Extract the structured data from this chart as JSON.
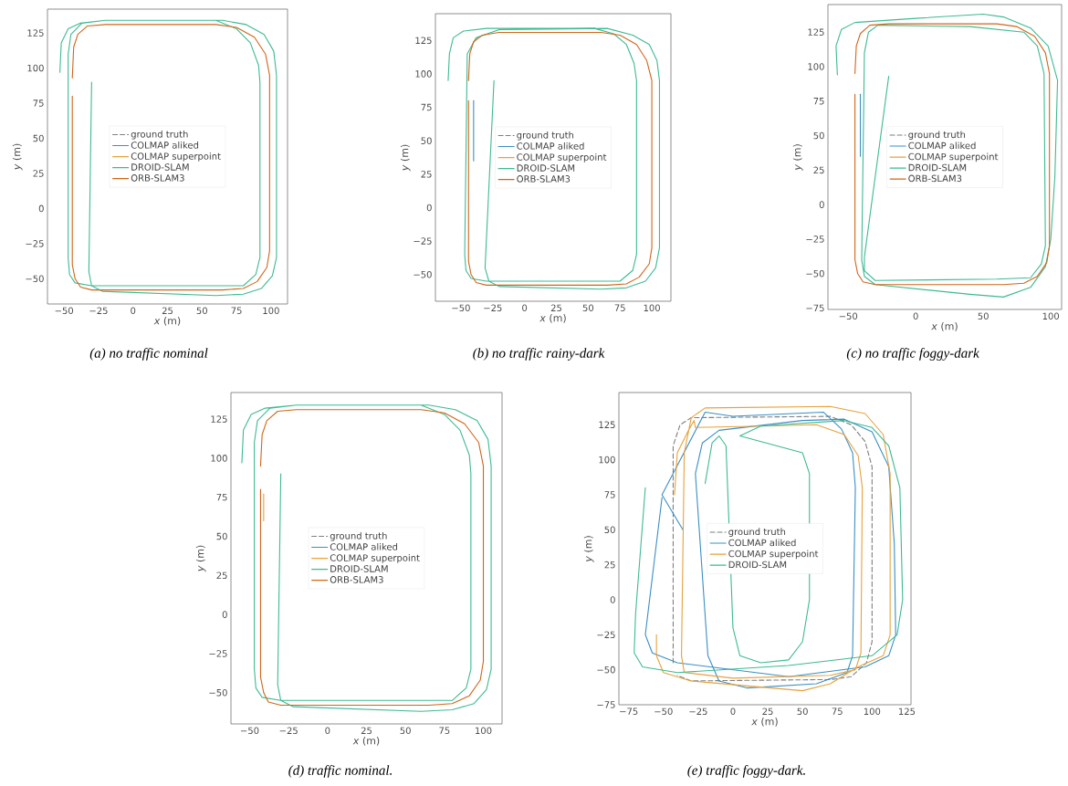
{
  "chart_data": [
    {
      "type": "line",
      "xlabel": "*x* (m)",
      "ylabel": "*y* (m)",
      "legend": "center",
      "marker": "none",
      "annotations": [
        "(a) no traffic nominal"
      ],
      "xlim": [
        -62,
        112
      ],
      "ylim": [
        -68,
        142
      ],
      "xticks": [
        {
          "value": -50,
          "label": "−50"
        },
        {
          "value": -25,
          "label": "−25"
        },
        0,
        25,
        50,
        75,
        100
      ],
      "yticks": [
        {
          "value": -50,
          "label": "−50"
        },
        {
          "value": -25,
          "label": "−25"
        },
        0,
        25,
        50,
        75,
        100,
        125
      ],
      "series": [
        {
          "name": "ground truth",
          "color": "#7f7f7f",
          "line_style": "dashed",
          "x": [
            null
          ],
          "values": [
            null
          ]
        },
        {
          "name": "COLMAP aliked",
          "color": "#3a8fc4",
          "x": [
            null
          ],
          "values": [
            null
          ]
        },
        {
          "name": "COLMAP superpoint",
          "color": "#e6a23c",
          "x": [
            null
          ],
          "values": [
            null
          ]
        },
        {
          "name": "DROID-SLAM",
          "color": "#3dba93",
          "x": [
            -53,
            -52,
            -47,
            -38,
            -20,
            60,
            75,
            85,
            91,
            92,
            92,
            89,
            80,
            -30,
            -42,
            -46,
            -47,
            -47,
            -45,
            -37,
            -20,
            65,
            82,
            95,
            102,
            104,
            104,
            101,
            93,
            80,
            60,
            -22,
            -30,
            -32,
            -30
          ],
          "values": [
            97,
            118,
            128,
            132,
            134,
            134,
            128,
            118,
            102,
            90,
            -35,
            -47,
            -55,
            -55,
            -53,
            -47,
            -35,
            110,
            124,
            132,
            134,
            134,
            131,
            124,
            112,
            95,
            -35,
            -48,
            -57,
            -61,
            -62,
            -59,
            -55,
            -45,
            90
          ]
        },
        {
          "name": "ORB-SLAM3",
          "color": "#d0661a",
          "x": [
            -44,
            -43,
            -40,
            -33,
            -20,
            60,
            75,
            88,
            96,
            99,
            99,
            97,
            90,
            80,
            65,
            -30,
            -38,
            -42,
            -44,
            -44
          ],
          "values": [
            93,
            115,
            124,
            130,
            131,
            131,
            129,
            122,
            110,
            95,
            -30,
            -42,
            -52,
            -57,
            -58,
            -58,
            -56,
            -50,
            -40,
            80
          ]
        }
      ]
    },
    {
      "type": "line",
      "xlabel": "*x* (m)",
      "ylabel": "*y* (m)",
      "legend": "center",
      "marker": "none",
      "annotations": [
        "(b) no traffic rainy-dark"
      ],
      "xlim": [
        -70,
        115
      ],
      "ylim": [
        -70,
        145
      ],
      "xticks": [
        {
          "value": -50,
          "label": "−50"
        },
        {
          "value": -25,
          "label": "−25"
        },
        0,
        25,
        50,
        75,
        100
      ],
      "yticks": [
        {
          "value": -50,
          "label": "−50"
        },
        {
          "value": -25,
          "label": "−25"
        },
        0,
        25,
        50,
        75,
        100,
        125
      ],
      "series": [
        {
          "name": "ground truth",
          "color": "#7f7f7f",
          "line_style": "dashed",
          "x": [
            null
          ],
          "values": [
            null
          ]
        },
        {
          "name": "COLMAP aliked",
          "color": "#3a8fc4",
          "x": [
            -40,
            -40
          ],
          "values": [
            35,
            80
          ]
        },
        {
          "name": "COLMAP superpoint",
          "color": "#e6a23c",
          "x": [
            null
          ],
          "values": [
            null
          ]
        },
        {
          "name": "DROID-SLAM",
          "color": "#3dba93",
          "x": [
            -60,
            -59,
            -56,
            -48,
            -30,
            55,
            70,
            80,
            86,
            88,
            88,
            85,
            75,
            -30,
            -42,
            -46,
            -47,
            -45,
            -38,
            -20,
            65,
            85,
            98,
            104,
            106,
            106,
            103,
            95,
            80,
            60,
            -20,
            -28,
            -31,
            -24
          ],
          "values": [
            95,
            115,
            127,
            132,
            134,
            134,
            130,
            122,
            108,
            95,
            -35,
            -47,
            -55,
            -55,
            -53,
            -47,
            -35,
            115,
            127,
            133,
            134,
            129,
            122,
            110,
            95,
            -30,
            -45,
            -55,
            -60,
            -61,
            -59,
            -55,
            -45,
            95
          ]
        },
        {
          "name": "ORB-SLAM3",
          "color": "#d0661a",
          "x": [
            -44,
            -43,
            -40,
            -33,
            -20,
            60,
            75,
            88,
            96,
            100,
            100,
            98,
            90,
            80,
            65,
            -30,
            -38,
            -42,
            -44,
            -44
          ],
          "values": [
            95,
            115,
            124,
            129,
            131,
            131,
            129,
            122,
            110,
            95,
            -30,
            -42,
            -52,
            -57,
            -58,
            -58,
            -56,
            -50,
            -40,
            80
          ]
        }
      ]
    },
    {
      "type": "line",
      "xlabel": "*x* (m)",
      "ylabel": "*y* (m)",
      "legend": "center",
      "marker": "none",
      "annotations": [
        "(c) no traffic foggy-dark"
      ],
      "xlim": [
        -65,
        108
      ],
      "ylim": [
        -76,
        145
      ],
      "xticks": [
        {
          "value": -50,
          "label": "−50"
        },
        0,
        50,
        100
      ],
      "yticks": [
        {
          "value": -75,
          "label": "−75"
        },
        {
          "value": -50,
          "label": "−50"
        },
        {
          "value": -25,
          "label": "−25"
        },
        0,
        25,
        50,
        75,
        100,
        125
      ],
      "series": [
        {
          "name": "ground truth",
          "color": "#7f7f7f",
          "line_style": "dashed",
          "x": [
            null
          ],
          "values": [
            null
          ]
        },
        {
          "name": "COLMAP aliked",
          "color": "#3a8fc4",
          "x": [
            -41,
            -41
          ],
          "values": [
            35,
            80
          ]
        },
        {
          "name": "COLMAP superpoint",
          "color": "#e6a23c",
          "x": [
            null
          ],
          "values": [
            null
          ]
        },
        {
          "name": "DROID-SLAM",
          "color": "#3dba93",
          "x": [
            -58,
            -59,
            -55,
            -45,
            0,
            50,
            65,
            85,
            98,
            105,
            103,
            100,
            96,
            85,
            65,
            40,
            -30,
            -38,
            -40,
            -38,
            -35,
            -28,
            40,
            80,
            90,
            95,
            96,
            93,
            85,
            60,
            -30,
            -38,
            -38,
            -20
          ],
          "values": [
            94,
            115,
            127,
            132,
            135,
            138,
            136,
            128,
            115,
            90,
            20,
            -25,
            -45,
            -60,
            -67,
            -65,
            -58,
            -52,
            -40,
            110,
            125,
            130,
            129,
            125,
            115,
            95,
            -30,
            -43,
            -53,
            -54,
            -55,
            -48,
            -38,
            93
          ]
        },
        {
          "name": "ORB-SLAM3",
          "color": "#d0661a",
          "x": [
            -45,
            -44,
            -41,
            -34,
            -20,
            60,
            75,
            88,
            96,
            99,
            99,
            97,
            90,
            80,
            65,
            -30,
            -39,
            -43,
            -45,
            -45
          ],
          "values": [
            95,
            115,
            124,
            130,
            131,
            131,
            129,
            122,
            110,
            95,
            -30,
            -42,
            -52,
            -57,
            -58,
            -58,
            -56,
            -50,
            -40,
            80
          ]
        }
      ]
    },
    {
      "type": "line",
      "xlabel": "*x* (m)",
      "ylabel": "*y* (m)",
      "legend": "center",
      "marker": "none",
      "annotations": [
        "(d) traffic nominal."
      ],
      "xlim": [
        -62,
        112
      ],
      "ylim": [
        -70,
        142
      ],
      "xticks": [
        {
          "value": -50,
          "label": "−50"
        },
        {
          "value": -25,
          "label": "−25"
        },
        0,
        25,
        50,
        75,
        100
      ],
      "yticks": [
        {
          "value": -50,
          "label": "−50"
        },
        {
          "value": -25,
          "label": "−25"
        },
        0,
        25,
        50,
        75,
        100,
        125
      ],
      "series": [
        {
          "name": "ground truth",
          "color": "#7f7f7f",
          "line_style": "dashed",
          "x": [
            null
          ],
          "values": [
            null
          ]
        },
        {
          "name": "COLMAP aliked",
          "color": "#3a8fc4",
          "x": [
            null
          ],
          "values": [
            null
          ]
        },
        {
          "name": "COLMAP superpoint",
          "color": "#e6a23c",
          "x": [
            -41,
            -41
          ],
          "values": [
            60,
            77
          ]
        },
        {
          "name": "DROID-SLAM",
          "color": "#3dba93",
          "x": [
            -55,
            -54,
            -49,
            -40,
            -20,
            60,
            75,
            85,
            91,
            92,
            92,
            89,
            80,
            -30,
            -42,
            -46,
            -47,
            -47,
            -45,
            -37,
            -20,
            65,
            82,
            96,
            103,
            105,
            105,
            102,
            94,
            80,
            60,
            -22,
            -30,
            -32,
            -30
          ],
          "values": [
            97,
            118,
            128,
            132,
            134,
            134,
            128,
            118,
            102,
            90,
            -35,
            -47,
            -55,
            -55,
            -53,
            -47,
            -35,
            110,
            124,
            132,
            134,
            134,
            131,
            124,
            112,
            95,
            -35,
            -48,
            -57,
            -61,
            -62,
            -59,
            -55,
            -45,
            90
          ]
        },
        {
          "name": "ORB-SLAM3",
          "color": "#d0661a",
          "x": [
            -43,
            -42,
            -39,
            -32,
            -20,
            60,
            75,
            88,
            97,
            100,
            100,
            98,
            91,
            80,
            65,
            -30,
            -38,
            -41,
            -43,
            -43
          ],
          "values": [
            95,
            115,
            124,
            130,
            131,
            131,
            129,
            122,
            110,
            95,
            -30,
            -42,
            -52,
            -57,
            -58,
            -58,
            -56,
            -50,
            -40,
            80
          ]
        }
      ]
    },
    {
      "type": "line",
      "xlabel": "*x* (m)",
      "ylabel": "*y* (m)",
      "legend": "center",
      "marker": "none",
      "annotations": [
        "(e) traffic foggy-dark."
      ],
      "xlim": [
        -82,
        128
      ],
      "ylim": [
        -75,
        148
      ],
      "xticks": [
        {
          "value": -75,
          "label": "−75"
        },
        {
          "value": -50,
          "label": "−50"
        },
        {
          "value": -25,
          "label": "−25"
        },
        0,
        25,
        50,
        75,
        100,
        125
      ],
      "yticks": [
        {
          "value": -75,
          "label": "−75"
        },
        {
          "value": -50,
          "label": "−50"
        },
        {
          "value": -25,
          "label": "−25"
        },
        0,
        25,
        50,
        75,
        100,
        125
      ],
      "series": [
        {
          "name": "ground truth",
          "color": "#7f7f7f",
          "line_style": "dashed",
          "x": [
            -43,
            -43,
            -38,
            -30,
            70,
            85,
            95,
            100,
            100,
            96,
            85,
            70,
            -30,
            -40
          ],
          "values": [
            -45,
            110,
            125,
            130,
            131,
            125,
            113,
            95,
            -30,
            -45,
            -55,
            -57,
            -58,
            -54
          ]
        },
        {
          "name": "COLMAP aliked",
          "color": "#3a8fc4",
          "x": [
            -36,
            -51,
            -20,
            0,
            65,
            78,
            86,
            88,
            86,
            82,
            60,
            10,
            -10,
            -18,
            -27,
            -22,
            -10,
            50,
            80,
            100,
            112,
            116,
            117,
            112,
            95,
            40,
            -40,
            -58,
            -63,
            -51
          ],
          "values": [
            50,
            75,
            134,
            131,
            134,
            122,
            105,
            80,
            -40,
            -52,
            -60,
            -63,
            -58,
            -40,
            90,
            112,
            121,
            128,
            129,
            120,
            95,
            40,
            -25,
            -40,
            -48,
            -55,
            -45,
            -38,
            -25,
            73
          ]
        },
        {
          "name": "COLMAP superpoint",
          "color": "#e6a23c",
          "x": [
            -42,
            -40,
            -32,
            -28,
            -27,
            20,
            60,
            80,
            90,
            93,
            92,
            88,
            70,
            0,
            -35,
            -37,
            -35,
            -30,
            -20,
            70,
            95,
            108,
            113,
            113,
            108,
            90,
            70,
            50,
            -30,
            -50,
            -55,
            -55
          ],
          "values": [
            75,
            105,
            121,
            128,
            123,
            124,
            125,
            118,
            103,
            80,
            -38,
            -50,
            -54,
            -56,
            -52,
            -40,
            105,
            130,
            137,
            138,
            133,
            118,
            90,
            -25,
            -40,
            -48,
            -60,
            -65,
            -58,
            -52,
            -40,
            -25
          ]
        },
        {
          "name": "DROID-SLAM",
          "color": "#3dba93",
          "x": [
            -63,
            -70,
            -71,
            -65,
            -40,
            40,
            100,
            118,
            122,
            120,
            112,
            100,
            80,
            20,
            5,
            50,
            55,
            55,
            50,
            40,
            20,
            5,
            0,
            -5,
            -10,
            -15,
            -20
          ],
          "values": [
            80,
            -10,
            -38,
            -48,
            -52,
            -47,
            -40,
            -25,
            0,
            80,
            110,
            123,
            128,
            124,
            117,
            105,
            90,
            0,
            -30,
            -43,
            -45,
            -40,
            -20,
            110,
            117,
            112,
            83
          ]
        }
      ]
    }
  ]
}
